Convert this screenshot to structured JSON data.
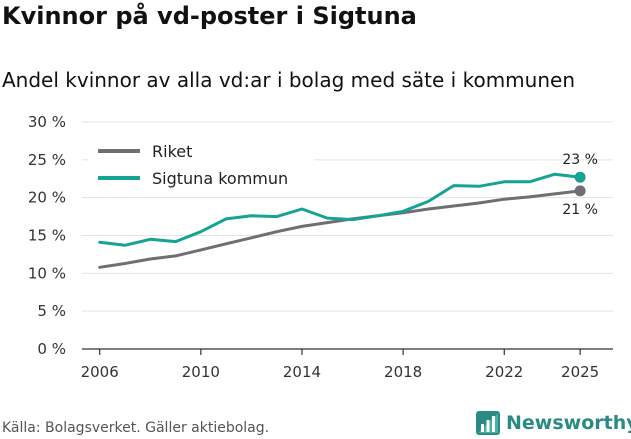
{
  "header": {
    "title": "Kvinnor på vd-poster i Sigtuna",
    "subtitle": "Andel kvinnor av alla vd:ar i bolag med säte i kommunen"
  },
  "footer": {
    "source": "Källa: Bolagsverket. Gäller aktiebolag.",
    "brand": "Newsworthy"
  },
  "colors": {
    "riket": "#6f6f73",
    "sigtuna": "#16a394",
    "grid": "#e3e3e3",
    "axis": "#333333"
  },
  "chart_data": {
    "type": "line",
    "title": "Kvinnor på vd-poster i Sigtuna",
    "subtitle": "Andel kvinnor av alla vd:ar i bolag med säte i kommunen",
    "xlabel": "",
    "ylabel": "",
    "xlim": [
      2005.3,
      2026.3
    ],
    "ylim": [
      0,
      30
    ],
    "grid": true,
    "legend_position": "top-left",
    "x": [
      2006,
      2007,
      2008,
      2009,
      2010,
      2011,
      2012,
      2013,
      2014,
      2015,
      2016,
      2017,
      2018,
      2019,
      2020,
      2021,
      2022,
      2023,
      2024,
      2025
    ],
    "x_ticks": [
      2006,
      2010,
      2014,
      2018,
      2022,
      2025
    ],
    "x_tick_labels": [
      "2006",
      "2010",
      "2014",
      "2018",
      "2022",
      "2025"
    ],
    "y_ticks": [
      0,
      5,
      10,
      15,
      20,
      25,
      30
    ],
    "y_tick_labels": [
      "0 %",
      "5 %",
      "10 %",
      "15 %",
      "20 %",
      "25 %",
      "30 %"
    ],
    "series": [
      {
        "name": "Riket",
        "color": "#6f6f73",
        "values": [
          10.8,
          11.3,
          11.9,
          12.3,
          13.1,
          13.9,
          14.7,
          15.5,
          16.2,
          16.7,
          17.2,
          17.6,
          18.0,
          18.5,
          18.9,
          19.3,
          19.8,
          20.1,
          20.5,
          20.9
        ],
        "end_label": "21 %"
      },
      {
        "name": "Sigtuna kommun",
        "color": "#16a394",
        "values": [
          14.1,
          13.7,
          14.5,
          14.2,
          15.5,
          17.2,
          17.6,
          17.5,
          18.5,
          17.3,
          17.1,
          17.6,
          18.2,
          19.5,
          21.6,
          21.5,
          22.1,
          22.1,
          23.1,
          22.7
        ],
        "end_label": "23 %"
      }
    ]
  }
}
